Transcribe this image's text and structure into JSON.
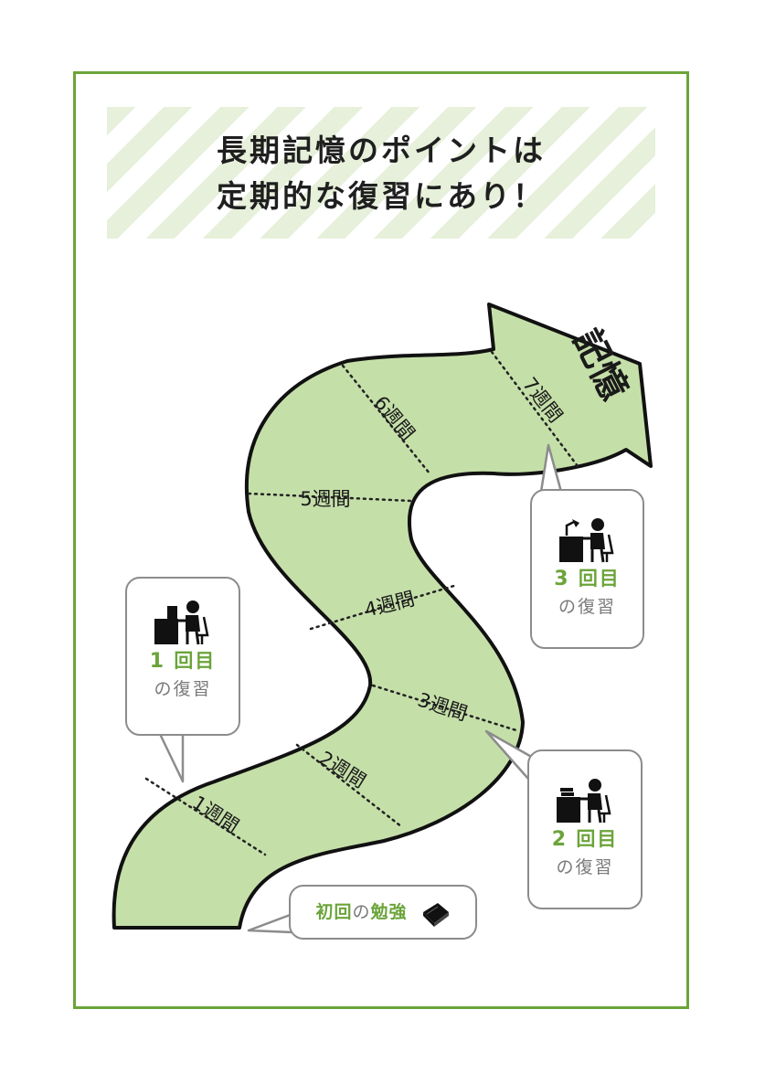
{
  "title": {
    "line1": "長期記憶のポイントは",
    "line2": "定期的な復習にあり！"
  },
  "goal_label": "記憶",
  "weeks": [
    "1週間",
    "2週間",
    "3週間",
    "4週間",
    "5週間",
    "6週間",
    "7週間"
  ],
  "reviews": [
    {
      "count": "1",
      "count_unit": "回目",
      "sub": "の復習",
      "icon": "person-at-desk-icon"
    },
    {
      "count": "2",
      "count_unit": "回目",
      "sub": "の復習",
      "icon": "person-at-desk-with-books-icon"
    },
    {
      "count": "3",
      "count_unit": "回目",
      "sub": "の復習",
      "icon": "person-at-desk-with-lamp-icon"
    }
  ],
  "first_study": {
    "part1": "初回",
    "part2": "の",
    "part3": "勉強",
    "icon": "book-icon"
  },
  "colors": {
    "accent": "#6ba43a",
    "path_fill": "#c5dfa9",
    "stripe": "#e6f0da",
    "bubble_border": "#8c8c8c"
  }
}
